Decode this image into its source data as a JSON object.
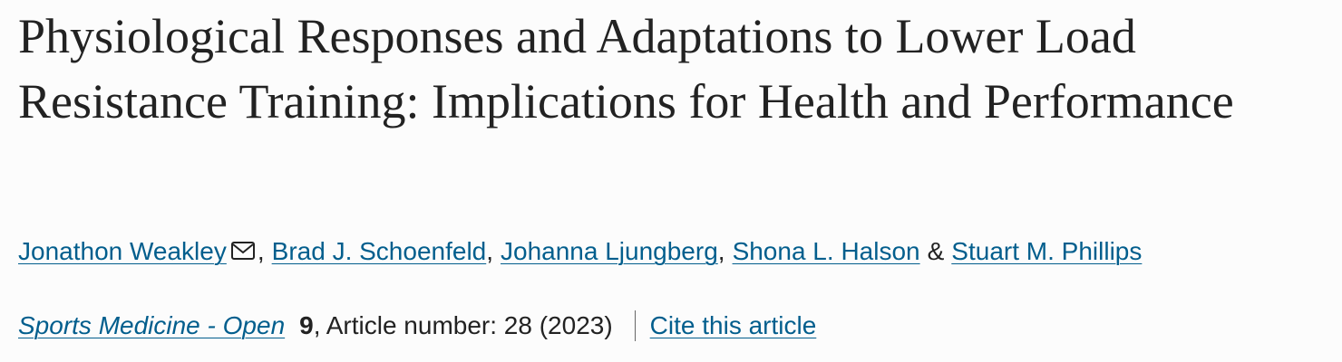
{
  "article": {
    "title": "Physiological Responses and Adaptations to Lower Load Resistance Training: Implications for Health and Performance",
    "authors": [
      {
        "name": "Jonathon Weakley",
        "separator": ","
      },
      {
        "name": "Brad J. Schoenfeld",
        "separator": ","
      },
      {
        "name": "Johanna Ljungberg",
        "separator": ","
      },
      {
        "name": "Shona L. Halson",
        "separator": "&"
      },
      {
        "name": "Stuart M. Phillips"
      }
    ],
    "journal": "Sports Medicine - Open",
    "volume": "9",
    "details": ", Article number: 28 (2023)",
    "cite_link": "Cite this article"
  }
}
